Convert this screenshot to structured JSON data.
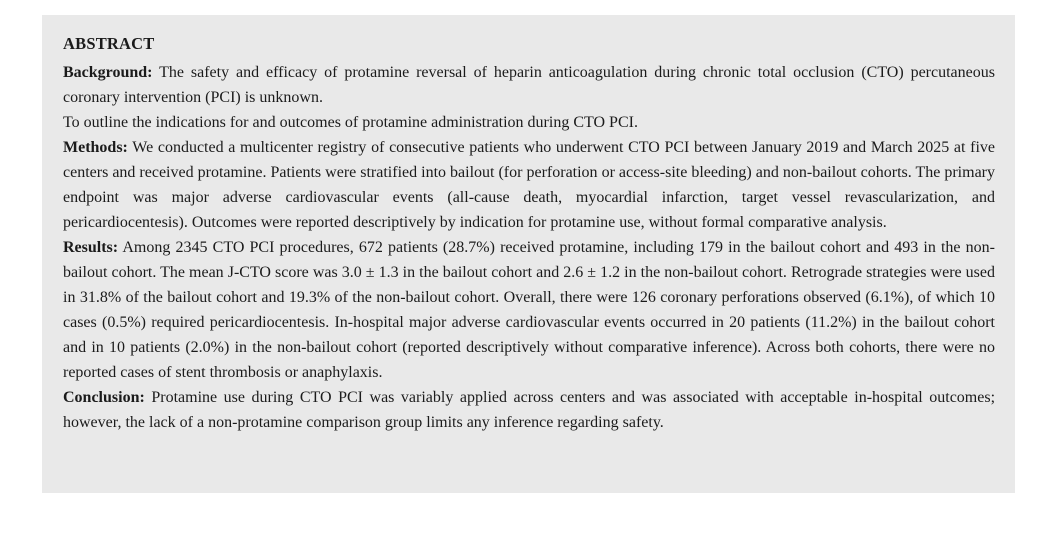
{
  "colors": {
    "panel_background": "#e9e9e9",
    "page_background": "#ffffff",
    "text": "#1b1b1b"
  },
  "abstract": {
    "heading": "ABSTRACT",
    "sections": [
      {
        "label": "Background:",
        "text": "The safety and efficacy of protamine reversal of heparin anticoagulation during chronic total occlusion (CTO) percutaneous coronary intervention (PCI) is unknown."
      },
      {
        "label": "",
        "text": "To outline the indications for and outcomes of protamine administration during CTO PCI."
      },
      {
        "label": "Methods:",
        "text": "We conducted a multicenter registry of consecutive patients who underwent CTO PCI between January 2019 and March 2025 at five centers and received protamine. Patients were stratified into bailout (for perforation or access-site bleeding) and non-bailout cohorts. The primary endpoint was major adverse cardiovascular events (all-cause death, myocardial infarction, target vessel revascularization, and pericardiocentesis). Outcomes were reported descriptively by indication for protamine use, without formal comparative analysis."
      },
      {
        "label": "Results:",
        "text": "Among 2345 CTO PCI procedures, 672 patients (28.7%) received protamine, including 179 in the bailout cohort and 493 in the non-bailout cohort. The mean J-CTO score was 3.0 ± 1.3 in the bailout cohort and 2.6 ± 1.2 in the non-bailout cohort. Retrograde strategies were used in 31.8% of the bailout cohort and 19.3% of the non-bailout cohort. Overall, there were 126 coronary perforations observed (6.1%), of which 10 cases (0.5%) required pericardiocentesis. In-hospital major adverse cardiovascular events occurred in 20 patients (11.2%) in the bailout cohort and in 10 patients (2.0%) in the non-bailout cohort (reported descriptively without comparative inference). Across both cohorts, there were no reported cases of stent thrombosis or anaphylaxis."
      },
      {
        "label": "Conclusion:",
        "text": "Protamine use during CTO PCI was variably applied across centers and was associated with acceptable in-hospital outcomes; however, the lack of a non-protamine comparison group limits any inference regarding safety."
      }
    ]
  }
}
